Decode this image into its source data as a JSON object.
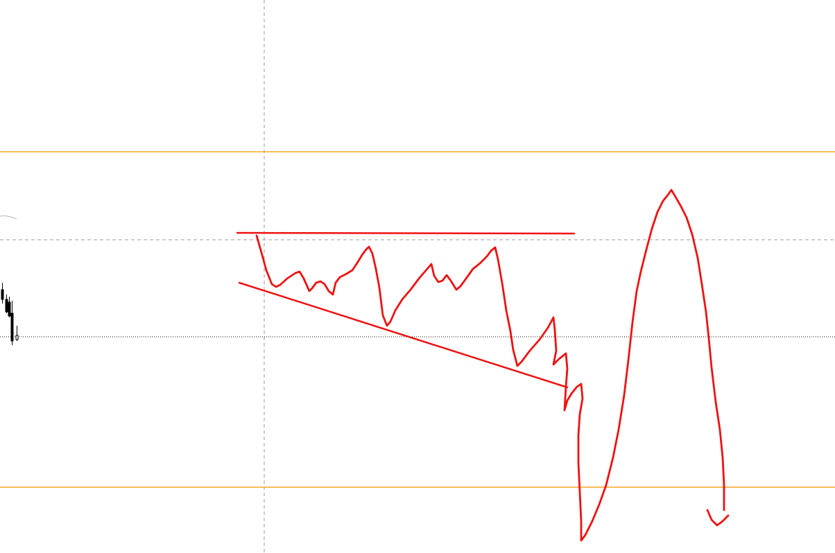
{
  "chart_data": {
    "type": "candlestick",
    "title": "",
    "xlabel": "",
    "ylabel": "",
    "grid": false,
    "legend": "none",
    "candles": [
      {
        "direction": "down"
      },
      {
        "direction": "down"
      },
      {
        "direction": "down"
      },
      {
        "direction": "down"
      },
      {
        "direction": "up"
      }
    ],
    "horizontal_levels": [
      {
        "name": "resistance-level",
        "color": "#f5a623",
        "style": "solid"
      },
      {
        "name": "support-level",
        "color": "#f5a623",
        "style": "solid"
      },
      {
        "name": "dashed-level",
        "color": "#9a9a9a",
        "style": "dashed"
      },
      {
        "name": "current-price-level",
        "color": "#000000",
        "style": "dotted"
      }
    ],
    "vertical_markers": [
      {
        "name": "period-separator",
        "color": "#9a9a9a",
        "style": "dashed"
      }
    ],
    "drawings": [
      {
        "name": "triangle-top-line",
        "color": "#ee1111",
        "kind": "straight line"
      },
      {
        "name": "triangle-bottom-line",
        "color": "#ee1111",
        "kind": "straight line"
      },
      {
        "name": "projected-price-path",
        "color": "#ee1111",
        "kind": "freehand"
      }
    ]
  }
}
